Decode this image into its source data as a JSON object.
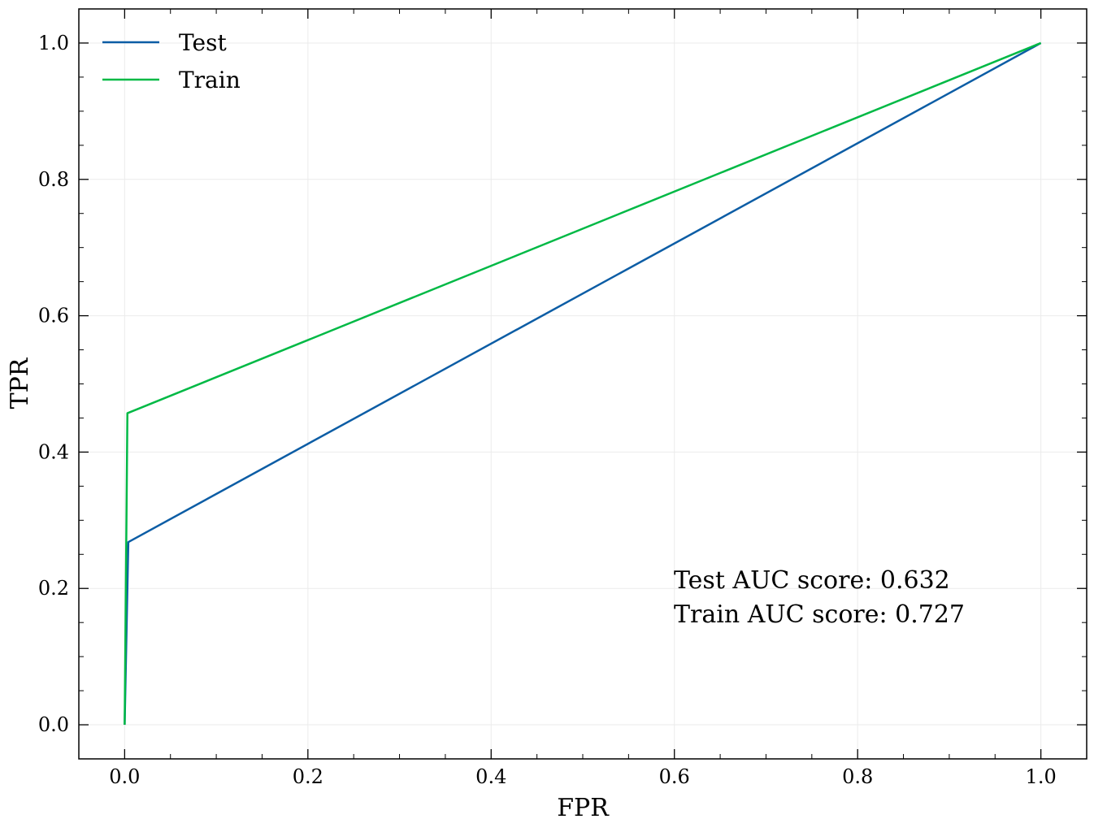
{
  "chart_data": {
    "type": "line",
    "title": "",
    "xlabel": "FPR",
    "ylabel": "TPR",
    "xlim": [
      -0.05,
      1.05
    ],
    "ylim": [
      -0.05,
      1.05
    ],
    "x_ticks": [
      0.0,
      0.2,
      0.4,
      0.6,
      0.8,
      1.0
    ],
    "x_tick_labels": [
      "0.0",
      "0.2",
      "0.4",
      "0.6",
      "0.8",
      "1.0"
    ],
    "y_ticks": [
      0.0,
      0.2,
      0.4,
      0.6,
      0.8,
      1.0
    ],
    "y_tick_labels": [
      "0.0",
      "0.2",
      "0.4",
      "0.6",
      "0.8",
      "1.0"
    ],
    "grid": true,
    "legend_position": "top-left",
    "series": [
      {
        "name": "Test",
        "color": "#0C5DA5",
        "x": [
          0.0,
          0.004,
          1.0
        ],
        "y": [
          0.0,
          0.268,
          1.0
        ]
      },
      {
        "name": "Train",
        "color": "#00B945",
        "x": [
          0.0,
          0.003,
          1.0
        ],
        "y": [
          0.0,
          0.457,
          1.0
        ]
      }
    ],
    "annotations": [
      "Test AUC score: 0.632",
      "Train AUC score: 0.727"
    ]
  }
}
